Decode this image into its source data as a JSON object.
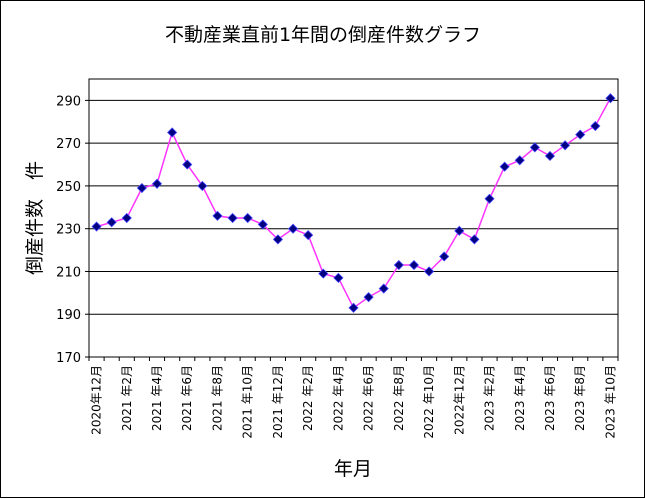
{
  "chart_data": {
    "type": "line",
    "title": "不動産業直前1年間の倒産件数グラフ",
    "xlabel": "年月",
    "ylabel": "倒産件数　件",
    "ylim": [
      170,
      300
    ],
    "yticks": [
      170,
      190,
      210,
      230,
      250,
      270,
      290
    ],
    "grid": true,
    "legend": "none",
    "colors": {
      "line": "#ff33ff",
      "marker": "#000080",
      "marker_edge": "#4040ff"
    },
    "x": [
      "2020年12月",
      "2021年1月",
      "2021年2月",
      "2021年3月",
      "2021年4月",
      "2021年5月",
      "2021年6月",
      "2021年7月",
      "2021年8月",
      "2021年9月",
      "2021年10月",
      "2021年11月",
      "2021年12月",
      "2022年1月",
      "2022年2月",
      "2022年3月",
      "2022年4月",
      "2022年5月",
      "2022年6月",
      "2022年7月",
      "2022年8月",
      "2022年9月",
      "2022年10月",
      "2022年11月",
      "2022年12月",
      "2023年1月",
      "2023年2月",
      "2023年3月",
      "2023年4月",
      "2023年5月",
      "2023年6月",
      "2023年7月",
      "2023年8月",
      "2023年9月",
      "2023年10月"
    ],
    "xtick_labels": [
      "2020年12月",
      "2021 年2月",
      "2021 年4月",
      "2021 年6月",
      "2021 年8月",
      "2021 年10月",
      "2021 年12月",
      "2022 年2月",
      "2022 年4月",
      "2022 年6月",
      "2022 年8月",
      "2022 年10月",
      "2022年12月",
      "2023 年2月",
      "2023 年4月",
      "2023 年6月",
      "2023 年8月",
      "2023 年10月"
    ],
    "series": [
      {
        "values": [
          231,
          233,
          235,
          249,
          251,
          275,
          260,
          250,
          236,
          235,
          235,
          232,
          225,
          230,
          227,
          209,
          207,
          193,
          198,
          202,
          213,
          213,
          210,
          217,
          229,
          225,
          244,
          259,
          262,
          268,
          264,
          269,
          274,
          278,
          291
        ]
      }
    ]
  }
}
